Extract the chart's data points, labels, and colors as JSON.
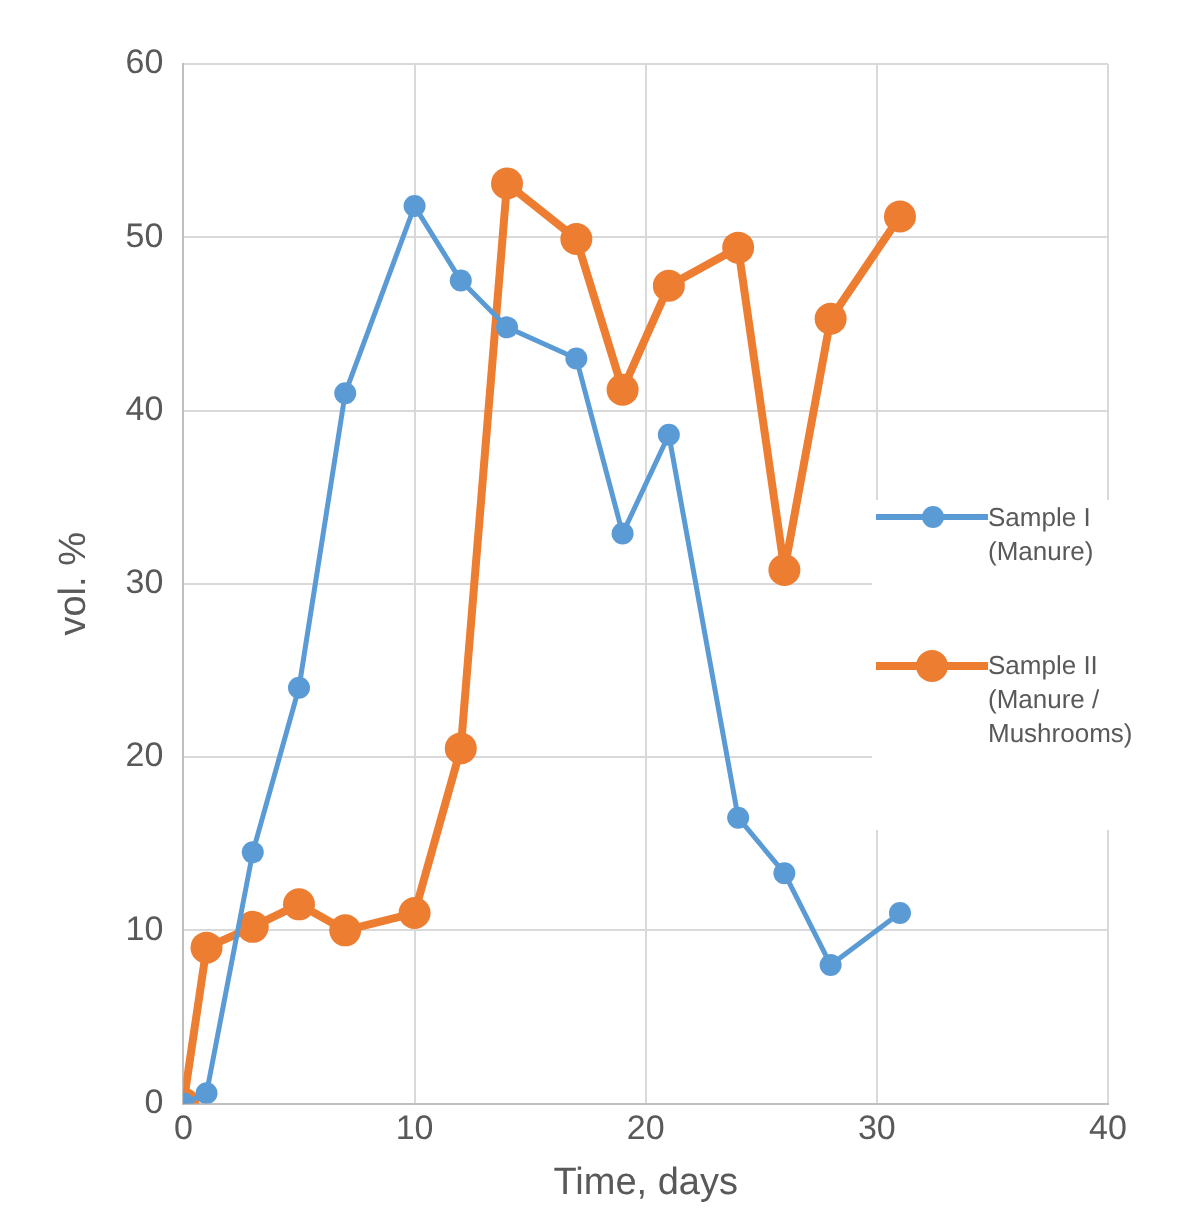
{
  "chart_data": {
    "type": "line",
    "xlabel": "Time, days",
    "ylabel": "vol. %",
    "xlim": [
      0,
      40
    ],
    "xticks": [
      0,
      10,
      20,
      30,
      40
    ],
    "ylim": [
      0,
      60
    ],
    "yticks": [
      0,
      10,
      20,
      30,
      40,
      50,
      60
    ],
    "grid": true,
    "legend": "right",
    "marker": "circle",
    "line_style": "solid",
    "series": [
      {
        "name": "Sample I (Manure)",
        "color": "#5b9bd5",
        "x": [
          0,
          1,
          3,
          5,
          7,
          10,
          12,
          14,
          17,
          19,
          21,
          24,
          26,
          28,
          31
        ],
        "values": [
          0,
          0.6,
          14.5,
          24,
          41,
          51.8,
          47.5,
          44.8,
          43,
          32.9,
          38.6,
          16.5,
          13.3,
          8,
          11
        ]
      },
      {
        "name": "Sample II (Manure / Mushrooms)",
        "color": "#ed7d31",
        "x": [
          0,
          1,
          3,
          5,
          7,
          10,
          12,
          14,
          17,
          19,
          21,
          24,
          26,
          28,
          31
        ],
        "values": [
          0,
          9,
          10.2,
          11.5,
          10,
          11,
          20.5,
          53.1,
          49.9,
          41.2,
          47.2,
          49.4,
          30.8,
          45.3,
          51.2
        ]
      }
    ]
  }
}
